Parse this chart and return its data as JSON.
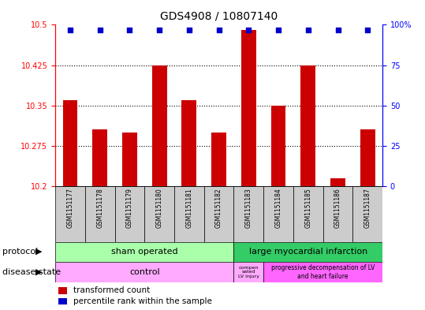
{
  "title": "GDS4908 / 10807140",
  "samples": [
    "GSM1151177",
    "GSM1151178",
    "GSM1151179",
    "GSM1151180",
    "GSM1151181",
    "GSM1151182",
    "GSM1151183",
    "GSM1151184",
    "GSM1151185",
    "GSM1151186",
    "GSM1151187"
  ],
  "transformed_counts": [
    10.36,
    10.305,
    10.3,
    10.425,
    10.36,
    10.3,
    10.49,
    10.35,
    10.425,
    10.215,
    10.305
  ],
  "percentile_ranks": [
    97,
    97,
    97,
    97,
    97,
    97,
    97,
    97,
    97,
    97,
    97
  ],
  "ylim_left": [
    10.2,
    10.5
  ],
  "ylim_right": [
    0,
    100
  ],
  "yticks_left": [
    10.2,
    10.275,
    10.35,
    10.425,
    10.5
  ],
  "yticks_right": [
    0,
    25,
    50,
    75,
    100
  ],
  "bar_color": "#cc0000",
  "dot_color": "#0000cc",
  "bar_width": 0.5,
  "sham_color": "#aaffaa",
  "lmi_color": "#33cc66",
  "control_color": "#ffaaff",
  "comp_color": "#ffaaff",
  "prog_color": "#ff66ff",
  "sample_bg_color": "#cccccc",
  "legend_items": [
    {
      "color": "#cc0000",
      "label": "transformed count"
    },
    {
      "color": "#0000cc",
      "label": "percentile rank within the sample"
    }
  ]
}
